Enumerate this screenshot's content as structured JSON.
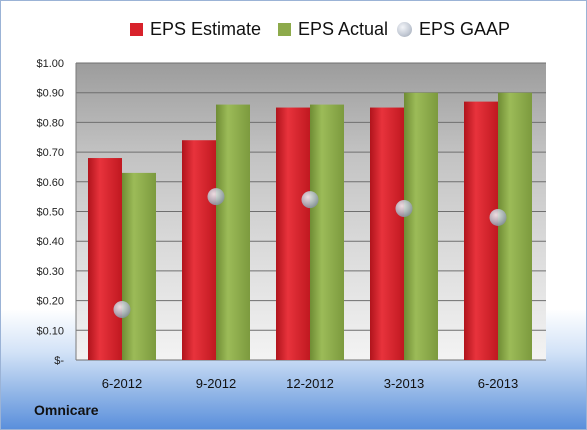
{
  "chart_data": {
    "type": "bar",
    "categories": [
      "6-2012",
      "9-2012",
      "12-2012",
      "3-2013",
      "6-2013"
    ],
    "series": [
      {
        "name": "EPS Estimate",
        "values": [
          0.68,
          0.74,
          0.85,
          0.85,
          0.87
        ],
        "color": "#d8222b"
      },
      {
        "name": "EPS Actual",
        "values": [
          0.63,
          0.86,
          0.86,
          0.9,
          0.9
        ],
        "color": "#8daa4b"
      },
      {
        "name": "EPS GAAP",
        "values": [
          0.17,
          0.55,
          0.54,
          0.51,
          0.48
        ],
        "color": "#b4bcc8",
        "marker": "circle"
      }
    ],
    "ylim": [
      0,
      1.0
    ],
    "yticks": [
      0,
      0.1,
      0.2,
      0.3,
      0.4,
      0.5,
      0.6,
      0.7,
      0.8,
      0.9,
      1.0
    ],
    "ytick_labels": [
      "$-",
      "$0.10",
      "$0.20",
      "$0.30",
      "$0.40",
      "$0.50",
      "$0.60",
      "$0.70",
      "$0.80",
      "$0.90",
      "$1.00"
    ],
    "grid": true,
    "legend_position": "top"
  },
  "legend": {
    "estimate": "EPS Estimate",
    "actual": "EPS Actual",
    "gaap": "EPS GAAP"
  },
  "brand": "Omnicare"
}
